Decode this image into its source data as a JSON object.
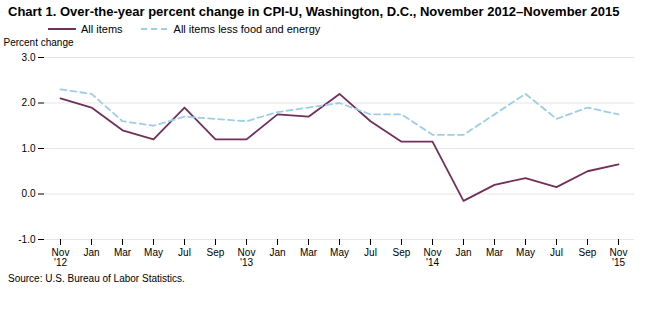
{
  "chart_data": {
    "type": "line",
    "title": "Chart 1. Over-the-year percent change in CPI-U,  Washington, D.C., November 2012–November 2015",
    "ylabel": "Percent change",
    "source": "Source: U.S. Bureau of Labor Statistics.",
    "categories": [
      "Nov\n'12",
      "Jan",
      "Mar",
      "May",
      "Jul",
      "Sep",
      "Nov\n'13",
      "Jan",
      "Mar",
      "May",
      "Jul",
      "Sep",
      "Nov\n'14",
      "Jan",
      "Mar",
      "May",
      "Jul",
      "Sep",
      "Nov\n'15"
    ],
    "series": [
      {
        "name": "All items",
        "color": "#722F5A",
        "line_style": "solid",
        "values": [
          2.1,
          1.9,
          1.4,
          1.2,
          1.9,
          1.2,
          1.2,
          1.75,
          1.7,
          2.2,
          1.6,
          1.15,
          1.15,
          -0.15,
          0.2,
          0.35,
          0.15,
          0.5,
          0.65
        ]
      },
      {
        "name": "All items less food and energy",
        "color": "#9DCDE8",
        "line_style": "dashed",
        "values": [
          2.3,
          2.2,
          1.6,
          1.5,
          1.7,
          1.65,
          1.6,
          1.8,
          1.9,
          2.0,
          1.75,
          1.75,
          1.3,
          1.3,
          1.75,
          2.2,
          1.65,
          1.9,
          1.75
        ]
      }
    ],
    "ylim": [
      -1.0,
      3.0
    ],
    "yticks": [
      {
        "value": -1.0,
        "label": "-1.0"
      },
      {
        "value": 0.0,
        "label": "0.0"
      },
      {
        "value": 1.0,
        "label": "1.0"
      },
      {
        "value": 2.0,
        "label": "2.0"
      },
      {
        "value": 3.0,
        "label": "3.0"
      }
    ],
    "grid": "y",
    "legend": "top"
  }
}
